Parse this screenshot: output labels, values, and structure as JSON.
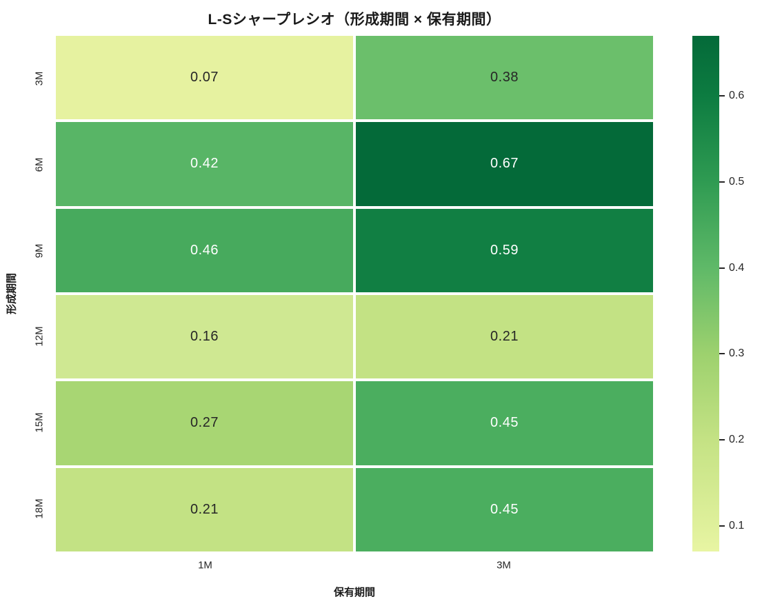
{
  "chart_data": {
    "type": "heatmap",
    "title": "L-Sシャープレシオ（形成期間 × 保有期間）",
    "xlabel": "保有期間",
    "ylabel": "形成期間",
    "x_categories": [
      "1M",
      "3M"
    ],
    "y_categories": [
      "3M",
      "6M",
      "9M",
      "12M",
      "15M",
      "18M"
    ],
    "values": [
      [
        0.07,
        0.38
      ],
      [
        0.42,
        0.67
      ],
      [
        0.46,
        0.59
      ],
      [
        0.16,
        0.21
      ],
      [
        0.27,
        0.45
      ],
      [
        0.21,
        0.45
      ]
    ],
    "cell_labels": [
      [
        "0.07",
        "0.38"
      ],
      [
        "0.42",
        "0.67"
      ],
      [
        "0.46",
        "0.59"
      ],
      [
        "0.16",
        "0.21"
      ],
      [
        "0.27",
        "0.45"
      ],
      [
        "0.21",
        "0.45"
      ]
    ],
    "cell_colors": [
      [
        "#e6f2a0",
        "#6bbf6b"
      ],
      [
        "#58b566",
        "#046a39"
      ],
      [
        "#47aa5d",
        "#117f43"
      ],
      [
        "#cfe892",
        "#c3e284"
      ],
      [
        "#a8d673",
        "#4bae5f"
      ],
      [
        "#c3e284",
        "#4bae5f"
      ]
    ],
    "cell_text_colors": [
      [
        "#262626",
        "#262626"
      ],
      [
        "#ffffff",
        "#ffffff"
      ],
      [
        "#ffffff",
        "#ffffff"
      ],
      [
        "#262626",
        "#262626"
      ],
      [
        "#262626",
        "#ffffff"
      ],
      [
        "#262626",
        "#ffffff"
      ]
    ],
    "colormap": "YlGn",
    "vmin": 0.07,
    "vmax": 0.67,
    "grid": false,
    "legend": "none",
    "colorbar": {
      "position": "right",
      "ticks": [
        0.6,
        0.5,
        0.4,
        0.3,
        0.2,
        0.1
      ],
      "gradient_stops": [
        {
          "value": 0.07,
          "color": "#e8f5a3"
        },
        {
          "value": 0.1,
          "color": "#dff09b"
        },
        {
          "value": 0.2,
          "color": "#c4e284"
        },
        {
          "value": 0.3,
          "color": "#9dd16e"
        },
        {
          "value": 0.4,
          "color": "#5fb968"
        },
        {
          "value": 0.5,
          "color": "#2f9b52"
        },
        {
          "value": 0.6,
          "color": "#0d7c41"
        },
        {
          "value": 0.67,
          "color": "#046a39"
        }
      ]
    }
  }
}
